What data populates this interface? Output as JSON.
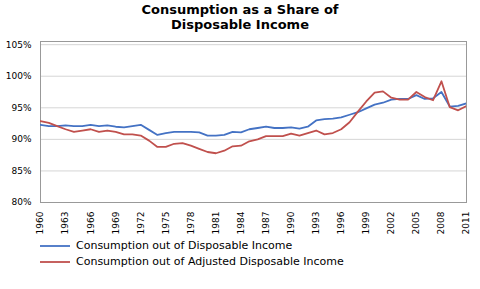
{
  "chart_data": {
    "type": "line",
    "title": "Consumption as a Share of\nDisposable Income",
    "x": [
      1960,
      1961,
      1962,
      1963,
      1964,
      1965,
      1966,
      1967,
      1968,
      1969,
      1970,
      1971,
      1972,
      1973,
      1974,
      1975,
      1976,
      1977,
      1978,
      1979,
      1980,
      1981,
      1982,
      1983,
      1984,
      1985,
      1986,
      1987,
      1988,
      1989,
      1990,
      1991,
      1992,
      1993,
      1994,
      1995,
      1996,
      1997,
      1998,
      1999,
      2000,
      2001,
      2002,
      2003,
      2004,
      2005,
      2006,
      2007,
      2008,
      2009,
      2010,
      2011
    ],
    "series": [
      {
        "name": "Consumption out of Disposable Income",
        "color": "#4472C4",
        "values": [
          0.923,
          0.921,
          0.921,
          0.922,
          0.921,
          0.921,
          0.923,
          0.921,
          0.922,
          0.92,
          0.919,
          0.921,
          0.923,
          0.915,
          0.907,
          0.91,
          0.912,
          0.912,
          0.912,
          0.911,
          0.906,
          0.906,
          0.907,
          0.912,
          0.911,
          0.916,
          0.918,
          0.92,
          0.918,
          0.918,
          0.919,
          0.917,
          0.92,
          0.93,
          0.932,
          0.933,
          0.935,
          0.939,
          0.943,
          0.949,
          0.955,
          0.958,
          0.963,
          0.964,
          0.964,
          0.97,
          0.964,
          0.965,
          0.975,
          0.952,
          0.953,
          0.957
        ]
      },
      {
        "name": "Consumption out of Adjusted Disposable Income",
        "color": "#C0504D",
        "values": [
          0.929,
          0.926,
          0.921,
          0.916,
          0.912,
          0.914,
          0.916,
          0.912,
          0.914,
          0.912,
          0.908,
          0.908,
          0.906,
          0.898,
          0.888,
          0.888,
          0.893,
          0.894,
          0.89,
          0.885,
          0.88,
          0.878,
          0.882,
          0.889,
          0.89,
          0.897,
          0.9,
          0.905,
          0.905,
          0.905,
          0.909,
          0.906,
          0.91,
          0.914,
          0.908,
          0.91,
          0.916,
          0.927,
          0.944,
          0.96,
          0.974,
          0.976,
          0.966,
          0.963,
          0.963,
          0.975,
          0.967,
          0.962,
          0.992,
          0.951,
          0.946,
          0.953
        ]
      }
    ],
    "xlim": [
      1960,
      2011
    ],
    "xticks": [
      1960,
      1963,
      1966,
      1969,
      1972,
      1975,
      1978,
      1981,
      1984,
      1987,
      1990,
      1993,
      1996,
      1999,
      2002,
      2005,
      2008,
      2011
    ],
    "ylim": [
      0.8,
      1.055
    ],
    "yticks": [
      {
        "value": 0.8,
        "label": "80%"
      },
      {
        "value": 0.85,
        "label": "85%"
      },
      {
        "value": 0.9,
        "label": "90%"
      },
      {
        "value": 0.95,
        "label": "95%"
      },
      {
        "value": 1.0,
        "label": "100%"
      },
      {
        "value": 1.05,
        "label": "105%"
      }
    ],
    "grid": true,
    "legend": "bottom"
  }
}
